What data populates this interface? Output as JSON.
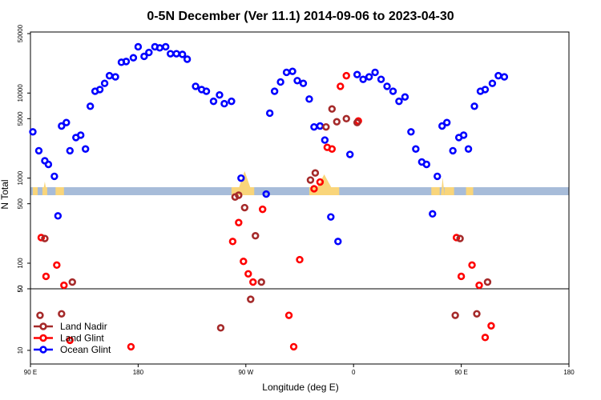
{
  "chart_data": {
    "type": "scatter",
    "title": "0-5N December (Ver 11.1)   2014-09-06 to 2023-04-30",
    "xlabel": "Longitude (deg E)",
    "ylabel": "N Total",
    "xlim": [
      90,
      540
    ],
    "x_ticks": [
      {
        "value": 90,
        "label": "90 E"
      },
      {
        "value": 180,
        "label": "180"
      },
      {
        "value": 270,
        "label": "90 W"
      },
      {
        "value": 360,
        "label": "0"
      },
      {
        "value": 450,
        "label": "90 E"
      },
      {
        "value": 540,
        "label": "180"
      }
    ],
    "upper_panel": {
      "scale": "log",
      "ylim": [
        50,
        50000
      ],
      "y_ticks": [
        {
          "value": 50,
          "label": "50"
        },
        {
          "value": 100,
          "label": "100"
        },
        {
          "value": 500,
          "label": "500"
        },
        {
          "value": 1000,
          "label": "1000"
        },
        {
          "value": 5000,
          "label": "5000"
        },
        {
          "value": 10000,
          "label": "10000"
        },
        {
          "value": 50000,
          "label": "50000"
        }
      ]
    },
    "lower_panel": {
      "scale": "log",
      "ylim": [
        7,
        50
      ],
      "y_ticks": [
        {
          "value": 10,
          "label": "10"
        },
        {
          "value": 50,
          "label": "50"
        }
      ]
    },
    "map_band": {
      "ocean_color": "#a7bcd9",
      "land_color": "#f9d57a"
    },
    "series": [
      {
        "name": "Ocean Glint",
        "color": "#0000ff",
        "points": [
          [
            92,
            3500
          ],
          [
            97,
            2100
          ],
          [
            102,
            1600
          ],
          [
            105,
            1450
          ],
          [
            110,
            1050
          ],
          [
            113,
            360
          ],
          [
            116,
            4100
          ],
          [
            120,
            4500
          ],
          [
            123,
            2100
          ],
          [
            128,
            3000
          ],
          [
            132,
            3200
          ],
          [
            136,
            2200
          ],
          [
            140,
            7000
          ],
          [
            144,
            10500
          ],
          [
            148,
            11000
          ],
          [
            152,
            13000
          ],
          [
            156,
            16000
          ],
          [
            161,
            15500
          ],
          [
            166,
            23000
          ],
          [
            170,
            23500
          ],
          [
            176,
            26000
          ],
          [
            180,
            35000
          ],
          [
            185,
            27000
          ],
          [
            189,
            30000
          ],
          [
            194,
            35000
          ],
          [
            198,
            34000
          ],
          [
            203,
            35000
          ],
          [
            207,
            29000
          ],
          [
            212,
            29000
          ],
          [
            217,
            28500
          ],
          [
            221,
            25000
          ],
          [
            228,
            12000
          ],
          [
            233,
            11000
          ],
          [
            237,
            10500
          ],
          [
            243,
            8000
          ],
          [
            248,
            9500
          ],
          [
            252,
            7500
          ],
          [
            258,
            8000
          ],
          [
            266,
            1000
          ],
          [
            287,
            650
          ],
          [
            290,
            5800
          ],
          [
            294,
            10500
          ],
          [
            299,
            13500
          ],
          [
            304,
            17500
          ],
          [
            309,
            18000
          ],
          [
            313,
            14000
          ],
          [
            318,
            13000
          ],
          [
            323,
            8500
          ],
          [
            327,
            4000
          ],
          [
            332,
            4100
          ],
          [
            336,
            2800
          ],
          [
            341,
            350
          ],
          [
            347,
            180
          ],
          [
            357,
            1900
          ],
          [
            363,
            16500
          ],
          [
            368,
            14500
          ],
          [
            373,
            15500
          ],
          [
            378,
            17500
          ],
          [
            383,
            14500
          ],
          [
            388,
            12000
          ],
          [
            393,
            10500
          ],
          [
            398,
            8000
          ],
          [
            403,
            9000
          ],
          [
            408,
            3500
          ],
          [
            412,
            2200
          ],
          [
            417,
            1550
          ],
          [
            421,
            1450
          ],
          [
            426,
            380
          ],
          [
            430,
            1050
          ],
          [
            434,
            4100
          ],
          [
            438,
            4500
          ],
          [
            443,
            2100
          ],
          [
            448,
            3000
          ],
          [
            452,
            3200
          ],
          [
            456,
            2200
          ],
          [
            461,
            7000
          ],
          [
            466,
            10500
          ],
          [
            470,
            11000
          ],
          [
            476,
            13000
          ],
          [
            481,
            16000
          ],
          [
            486,
            15500
          ]
        ]
      },
      {
        "name": "Land Glint",
        "color": "#ff0000",
        "points": [
          [
            99,
            200
          ],
          [
            103,
            70
          ],
          [
            112,
            95
          ],
          [
            118,
            55
          ],
          [
            123,
            13
          ],
          [
            174,
            11
          ],
          [
            259,
            180
          ],
          [
            264,
            300
          ],
          [
            268,
            105
          ],
          [
            272,
            75
          ],
          [
            276,
            60
          ],
          [
            284,
            430
          ],
          [
            306,
            25
          ],
          [
            310,
            11
          ],
          [
            315,
            110
          ],
          [
            327,
            750
          ],
          [
            332,
            900
          ],
          [
            338,
            2300
          ],
          [
            342,
            2200
          ],
          [
            349,
            12000
          ],
          [
            354,
            16000
          ],
          [
            364,
            4700
          ],
          [
            446,
            200
          ],
          [
            450,
            70
          ],
          [
            459,
            95
          ],
          [
            465,
            55
          ],
          [
            470,
            14
          ],
          [
            475,
            19
          ]
        ]
      },
      {
        "name": "Land Nadir",
        "color": "#a52a2a",
        "points": [
          [
            98,
            25
          ],
          [
            102,
            195
          ],
          [
            116,
            26
          ],
          [
            125,
            60
          ],
          [
            249,
            18
          ],
          [
            261,
            600
          ],
          [
            264,
            630
          ],
          [
            269,
            450
          ],
          [
            274,
            38
          ],
          [
            278,
            210
          ],
          [
            283,
            60
          ],
          [
            324,
            950
          ],
          [
            328,
            1150
          ],
          [
            337,
            4000
          ],
          [
            342,
            6500
          ],
          [
            346,
            4600
          ],
          [
            354,
            5000
          ],
          [
            363,
            4500
          ],
          [
            445,
            25
          ],
          [
            449,
            195
          ],
          [
            463,
            26
          ],
          [
            472,
            60
          ]
        ]
      }
    ],
    "legend": {
      "position": "bottom-left",
      "entries": [
        {
          "name": "Land Nadir",
          "color": "#a52a2a"
        },
        {
          "name": "Land Glint",
          "color": "#ff0000"
        },
        {
          "name": "Ocean Glint",
          "color": "#0000ff"
        }
      ]
    }
  }
}
